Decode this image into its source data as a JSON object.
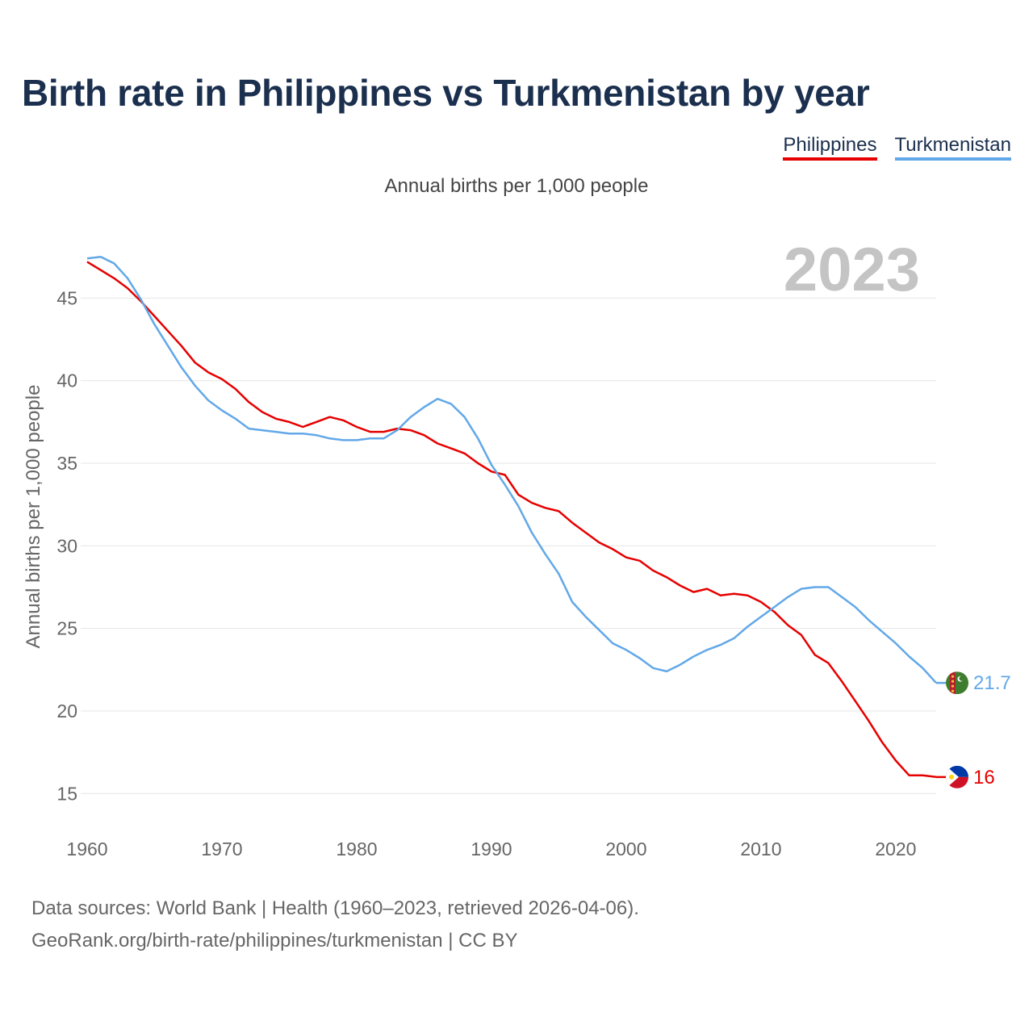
{
  "header": {
    "title": "Birth rate in Philippines vs Turkmenistan by year",
    "subtitle": "Annual births per 1,000 people"
  },
  "legend": {
    "philippines": "Philippines",
    "turkmenistan": "Turkmenistan"
  },
  "footer": {
    "line1": "Data sources: World Bank | Health (1960–2023, retrieved 2026-04-06).",
    "line2": "GeoRank.org/birth-rate/philippines/turkmenistan | CC BY"
  },
  "colors": {
    "philippines": "#e60000",
    "turkmenistan": "#62a8e8",
    "title": "#1b2f4e"
  },
  "chart_data": {
    "type": "line",
    "title": "Birth rate in Philippines vs Turkmenistan by year",
    "subtitle": "Annual births per 1,000 people",
    "xlabel": "",
    "ylabel": "Annual births per 1,000 people",
    "year_watermark": "2023",
    "xlim": [
      1960,
      2023
    ],
    "ylim": [
      13.5,
      48
    ],
    "xticks": [
      1960,
      1970,
      1980,
      1990,
      2000,
      2010,
      2020
    ],
    "yticks": [
      15,
      20,
      25,
      30,
      35,
      40,
      45
    ],
    "grid": true,
    "legend_position": "top-right",
    "x": [
      1960,
      1961,
      1962,
      1963,
      1964,
      1965,
      1966,
      1967,
      1968,
      1969,
      1970,
      1971,
      1972,
      1973,
      1974,
      1975,
      1976,
      1977,
      1978,
      1979,
      1980,
      1981,
      1982,
      1983,
      1984,
      1985,
      1986,
      1987,
      1988,
      1989,
      1990,
      1991,
      1992,
      1993,
      1994,
      1995,
      1996,
      1997,
      1998,
      1999,
      2000,
      2001,
      2002,
      2003,
      2004,
      2005,
      2006,
      2007,
      2008,
      2009,
      2010,
      2011,
      2012,
      2013,
      2014,
      2015,
      2016,
      2017,
      2018,
      2019,
      2020,
      2021,
      2022,
      2023
    ],
    "series": [
      {
        "name": "Philippines",
        "color": "#e60000",
        "end_label": "16",
        "values": [
          47.2,
          46.7,
          46.2,
          45.6,
          44.8,
          43.9,
          43.0,
          42.1,
          41.1,
          40.5,
          40.1,
          39.5,
          38.7,
          38.1,
          37.7,
          37.5,
          37.2,
          37.5,
          37.8,
          37.6,
          37.2,
          36.9,
          36.9,
          37.1,
          37.0,
          36.7,
          36.2,
          35.9,
          35.6,
          35.0,
          34.5,
          34.3,
          33.1,
          32.6,
          32.3,
          32.1,
          31.4,
          30.8,
          30.2,
          29.8,
          29.3,
          29.1,
          28.5,
          28.1,
          27.6,
          27.2,
          27.4,
          27.0,
          27.1,
          27.0,
          26.6,
          26.0,
          25.2,
          24.6,
          23.4,
          22.9,
          21.8,
          20.6,
          19.4,
          18.1,
          17.0,
          16.1,
          16.1,
          16.0
        ]
      },
      {
        "name": "Turkmenistan",
        "color": "#62a8e8",
        "end_label": "21.7",
        "values": [
          47.4,
          47.5,
          47.1,
          46.2,
          44.9,
          43.4,
          42.1,
          40.8,
          39.7,
          38.8,
          38.2,
          37.7,
          37.1,
          37.0,
          36.9,
          36.8,
          36.8,
          36.7,
          36.5,
          36.4,
          36.4,
          36.5,
          36.5,
          37.0,
          37.8,
          38.4,
          38.9,
          38.6,
          37.8,
          36.5,
          34.9,
          33.7,
          32.4,
          30.8,
          29.5,
          28.3,
          26.6,
          25.7,
          24.9,
          24.1,
          23.7,
          23.2,
          22.6,
          22.4,
          22.8,
          23.3,
          23.7,
          24.0,
          24.4,
          25.1,
          25.7,
          26.3,
          26.9,
          27.4,
          27.5,
          27.5,
          26.9,
          26.3,
          25.5,
          24.8,
          24.1,
          23.3,
          22.6,
          21.7
        ]
      }
    ]
  }
}
